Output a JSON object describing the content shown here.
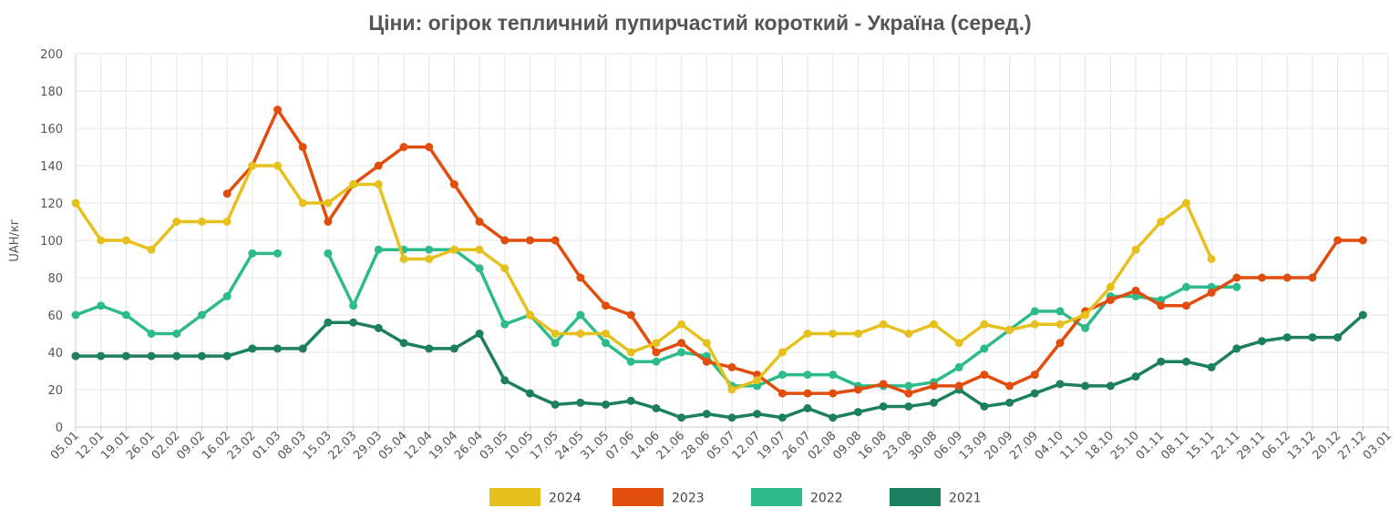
{
  "chart_data": {
    "type": "line",
    "title": "Ціни: огірок тепличний пупирчастий короткий - Україна (серед.)",
    "xlabel": "",
    "ylabel": "UAH/кг",
    "ylim": [
      0,
      200
    ],
    "yticks": [
      0,
      20,
      40,
      60,
      80,
      100,
      120,
      140,
      160,
      180,
      200
    ],
    "grid": true,
    "legend_position": "bottom",
    "categories": [
      "05.01",
      "12.01",
      "19.01",
      "26.01",
      "02.02",
      "09.02",
      "16.02",
      "23.02",
      "01.03",
      "08.03",
      "15.03",
      "22.03",
      "29.03",
      "05.04",
      "12.04",
      "19.04",
      "26.04",
      "03.05",
      "10.05",
      "17.05",
      "24.05",
      "31.05",
      "07.06",
      "14.06",
      "21.06",
      "28.06",
      "05.07",
      "12.07",
      "19.07",
      "26.07",
      "02.08",
      "09.08",
      "16.08",
      "23.08",
      "30.08",
      "06.09",
      "13.09",
      "20.09",
      "27.09",
      "04.10",
      "11.10",
      "18.10",
      "25.10",
      "01.11",
      "08.11",
      "15.11",
      "22.11",
      "29.11",
      "06.12",
      "13.12",
      "20.12",
      "27.12",
      "03.01"
    ],
    "series": [
      {
        "name": "2024",
        "color": "#e6c01c",
        "values": [
          120,
          100,
          100,
          95,
          110,
          110,
          110,
          140,
          140,
          120,
          120,
          130,
          130,
          90,
          90,
          95,
          95,
          85,
          60,
          50,
          50,
          50,
          40,
          45,
          55,
          45,
          20,
          25,
          40,
          50,
          50,
          50,
          55,
          50,
          55,
          45,
          55,
          52,
          55,
          55,
          60,
          75,
          95,
          110,
          120,
          90,
          null,
          null,
          null,
          null,
          null,
          null,
          null
        ]
      },
      {
        "name": "2023",
        "color": "#e14d0c",
        "values": [
          null,
          null,
          null,
          null,
          null,
          null,
          125,
          140,
          170,
          150,
          110,
          130,
          140,
          150,
          150,
          130,
          110,
          100,
          100,
          100,
          80,
          65,
          60,
          40,
          45,
          35,
          32,
          28,
          18,
          18,
          18,
          20,
          23,
          18,
          22,
          22,
          28,
          22,
          28,
          45,
          62,
          68,
          73,
          65,
          65,
          72,
          80,
          80,
          80,
          80,
          100,
          100,
          null
        ]
      },
      {
        "name": "2022",
        "color": "#2dbb8c",
        "values": [
          60,
          65,
          60,
          50,
          50,
          60,
          70,
          93,
          93,
          null,
          93,
          65,
          95,
          95,
          95,
          95,
          85,
          55,
          60,
          45,
          60,
          45,
          35,
          35,
          40,
          38,
          22,
          22,
          28,
          28,
          28,
          22,
          22,
          22,
          24,
          32,
          42,
          52,
          62,
          62,
          53,
          70,
          70,
          68,
          75,
          75,
          75,
          null,
          null,
          null,
          null,
          null,
          null
        ]
      },
      {
        "name": "2021",
        "color": "#1c7f5f",
        "values": [
          38,
          38,
          38,
          38,
          38,
          38,
          38,
          42,
          42,
          42,
          56,
          56,
          53,
          45,
          42,
          42,
          50,
          25,
          18,
          12,
          13,
          12,
          14,
          10,
          5,
          7,
          5,
          7,
          5,
          10,
          5,
          8,
          11,
          11,
          13,
          20,
          11,
          13,
          18,
          23,
          22,
          22,
          27,
          35,
          35,
          32,
          42,
          46,
          48,
          48,
          48,
          60,
          null
        ]
      }
    ]
  }
}
